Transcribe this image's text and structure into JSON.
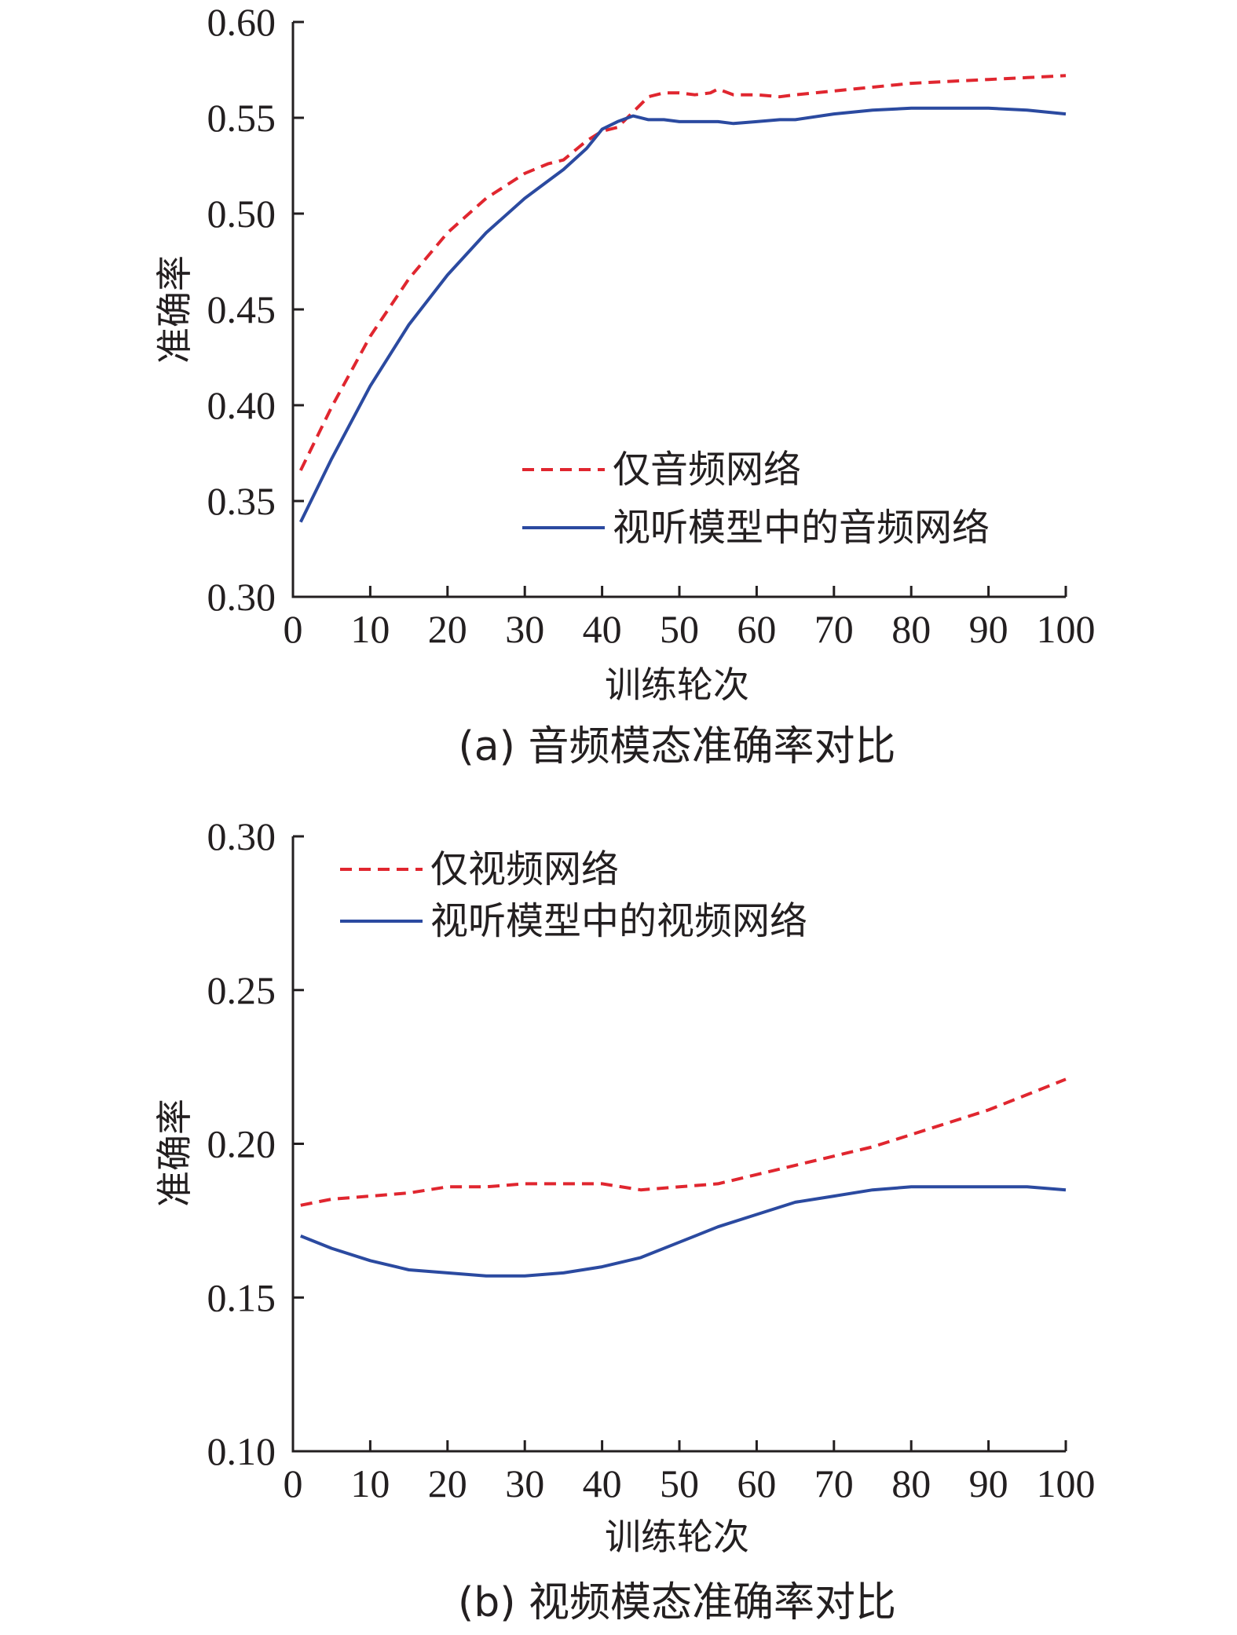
{
  "colors": {
    "audio_only": "#e0262f",
    "av_model": "#2b4aa0",
    "axis": "#231f20"
  },
  "chart_data": [
    {
      "type": "line",
      "caption": "(a) 音频模态准确率对比",
      "xlabel": "训练轮次",
      "ylabel": "准确率",
      "xlim": [
        0,
        100
      ],
      "ylim": [
        0.3,
        0.6
      ],
      "xticks": [
        "0",
        "10",
        "20",
        "30",
        "40",
        "50",
        "60",
        "70",
        "80",
        "90",
        "100"
      ],
      "yticks": [
        "0.30",
        "0.35",
        "0.40",
        "0.45",
        "0.50",
        "0.55",
        "0.60"
      ],
      "legend_position": "lower-right",
      "grid": false,
      "series": [
        {
          "name": "仅音频网络",
          "style": "dashed",
          "color": "#e0262f",
          "x": [
            1,
            5,
            10,
            15,
            20,
            25,
            30,
            33,
            35,
            38,
            40,
            42,
            44,
            46,
            48,
            50,
            52,
            54,
            55,
            57,
            60,
            63,
            65,
            70,
            75,
            80,
            85,
            90,
            95,
            100
          ],
          "y": [
            0.366,
            0.399,
            0.436,
            0.466,
            0.49,
            0.508,
            0.521,
            0.526,
            0.528,
            0.538,
            0.543,
            0.545,
            0.553,
            0.561,
            0.563,
            0.563,
            0.562,
            0.563,
            0.565,
            0.562,
            0.562,
            0.561,
            0.562,
            0.564,
            0.566,
            0.568,
            0.569,
            0.57,
            0.571,
            0.572
          ]
        },
        {
          "name": "视听模型中的音频网络",
          "style": "solid",
          "color": "#2b4aa0",
          "x": [
            1,
            5,
            10,
            15,
            20,
            25,
            30,
            33,
            35,
            38,
            40,
            42,
            44,
            46,
            48,
            50,
            52,
            54,
            55,
            57,
            60,
            63,
            65,
            70,
            75,
            80,
            85,
            90,
            95,
            100
          ],
          "y": [
            0.339,
            0.372,
            0.41,
            0.442,
            0.468,
            0.49,
            0.508,
            0.517,
            0.523,
            0.534,
            0.544,
            0.548,
            0.551,
            0.549,
            0.549,
            0.548,
            0.548,
            0.548,
            0.548,
            0.547,
            0.548,
            0.549,
            0.549,
            0.552,
            0.554,
            0.555,
            0.555,
            0.555,
            0.554,
            0.552
          ]
        }
      ]
    },
    {
      "type": "line",
      "caption": "(b) 视频模态准确率对比",
      "xlabel": "训练轮次",
      "ylabel": "准确率",
      "xlim": [
        0,
        100
      ],
      "ylim": [
        0.1,
        0.3
      ],
      "xticks": [
        "0",
        "10",
        "20",
        "30",
        "40",
        "50",
        "60",
        "70",
        "80",
        "90",
        "100"
      ],
      "yticks": [
        "0.10",
        "0.15",
        "0.20",
        "0.25",
        "0.30"
      ],
      "legend_position": "top-left",
      "grid": false,
      "series": [
        {
          "name": "仅视频网络",
          "style": "dashed",
          "color": "#e0262f",
          "x": [
            1,
            5,
            10,
            15,
            20,
            25,
            30,
            35,
            40,
            45,
            50,
            55,
            60,
            65,
            70,
            75,
            80,
            85,
            90,
            95,
            100
          ],
          "y": [
            0.18,
            0.182,
            0.183,
            0.184,
            0.186,
            0.186,
            0.187,
            0.187,
            0.187,
            0.185,
            0.186,
            0.187,
            0.19,
            0.193,
            0.196,
            0.199,
            0.203,
            0.207,
            0.211,
            0.216,
            0.221
          ],
          "comment": ""
        },
        {
          "name": "视听模型中的视频网络",
          "style": "solid",
          "color": "#2b4aa0",
          "x": [
            1,
            5,
            10,
            15,
            20,
            25,
            30,
            35,
            40,
            45,
            50,
            55,
            60,
            65,
            70,
            75,
            80,
            85,
            90,
            95,
            100
          ],
          "y": [
            0.17,
            0.166,
            0.162,
            0.159,
            0.158,
            0.157,
            0.157,
            0.158,
            0.16,
            0.163,
            0.168,
            0.173,
            0.177,
            0.181,
            0.183,
            0.185,
            0.186,
            0.186,
            0.186,
            0.186,
            0.185
          ]
        }
      ]
    }
  ]
}
